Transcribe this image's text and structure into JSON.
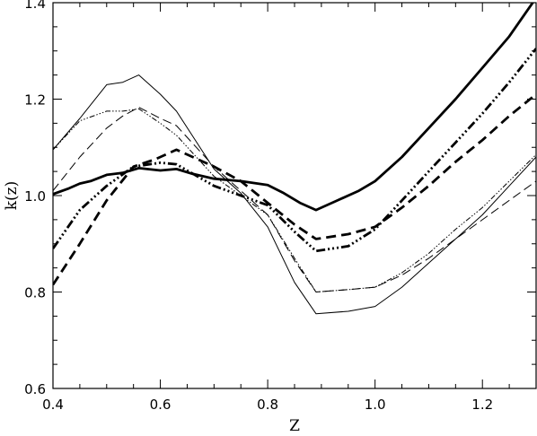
{
  "chart_data": {
    "type": "line",
    "title": "",
    "xlabel": "Z",
    "ylabel": "k(z)",
    "xlim": [
      0.4,
      1.3
    ],
    "ylim": [
      0.6,
      1.4
    ],
    "x_major_ticks": [
      0.4,
      0.6,
      0.8,
      1.0,
      1.2
    ],
    "x_minor_step": 0.05,
    "y_major_ticks": [
      0.6,
      0.8,
      1.0,
      1.2,
      1.4
    ],
    "y_minor_step": 0.05,
    "x_tick_labels": [
      "0.4",
      "0.6",
      "0.8",
      "1.0",
      "1.2"
    ],
    "y_tick_labels": [
      "0.6",
      "0.8",
      "1.0",
      "1.2",
      "1.4"
    ],
    "grid": false,
    "legend": "none",
    "colors": {
      "line": "#000000",
      "axes": "#000000",
      "background": "#ffffff"
    },
    "series": [
      {
        "style": "solid-thick",
        "points": [
          [
            0.4,
            1.003
          ],
          [
            0.43,
            1.015
          ],
          [
            0.45,
            1.025
          ],
          [
            0.47,
            1.03
          ],
          [
            0.5,
            1.043
          ],
          [
            0.53,
            1.047
          ],
          [
            0.56,
            1.057
          ],
          [
            0.6,
            1.052
          ],
          [
            0.63,
            1.055
          ],
          [
            0.66,
            1.045
          ],
          [
            0.7,
            1.035
          ],
          [
            0.75,
            1.03
          ],
          [
            0.8,
            1.022
          ],
          [
            0.83,
            1.005
          ],
          [
            0.86,
            0.985
          ],
          [
            0.89,
            0.97
          ],
          [
            0.93,
            0.99
          ],
          [
            0.97,
            1.01
          ],
          [
            1.0,
            1.03
          ],
          [
            1.05,
            1.08
          ],
          [
            1.1,
            1.14
          ],
          [
            1.15,
            1.2
          ],
          [
            1.2,
            1.265
          ],
          [
            1.25,
            1.33
          ],
          [
            1.3,
            1.41
          ]
        ]
      },
      {
        "style": "dashed-thick",
        "points": [
          [
            0.4,
            0.815
          ],
          [
            0.45,
            0.9
          ],
          [
            0.5,
            0.99
          ],
          [
            0.55,
            1.06
          ],
          [
            0.59,
            1.075
          ],
          [
            0.63,
            1.095
          ],
          [
            0.7,
            1.06
          ],
          [
            0.75,
            1.03
          ],
          [
            0.8,
            0.985
          ],
          [
            0.85,
            0.94
          ],
          [
            0.89,
            0.91
          ],
          [
            0.95,
            0.92
          ],
          [
            1.0,
            0.935
          ],
          [
            1.05,
            0.975
          ],
          [
            1.1,
            1.02
          ],
          [
            1.15,
            1.07
          ],
          [
            1.2,
            1.115
          ],
          [
            1.25,
            1.165
          ],
          [
            1.3,
            1.21
          ]
        ]
      },
      {
        "style": "dash-dot-thick",
        "points": [
          [
            0.4,
            0.89
          ],
          [
            0.45,
            0.97
          ],
          [
            0.5,
            1.02
          ],
          [
            0.55,
            1.06
          ],
          [
            0.6,
            1.068
          ],
          [
            0.63,
            1.065
          ],
          [
            0.7,
            1.02
          ],
          [
            0.75,
            1.0
          ],
          [
            0.8,
            0.98
          ],
          [
            0.85,
            0.925
          ],
          [
            0.89,
            0.885
          ],
          [
            0.95,
            0.895
          ],
          [
            1.0,
            0.93
          ],
          [
            1.05,
            0.99
          ],
          [
            1.1,
            1.05
          ],
          [
            1.15,
            1.11
          ],
          [
            1.2,
            1.17
          ],
          [
            1.25,
            1.235
          ],
          [
            1.3,
            1.305
          ]
        ]
      },
      {
        "style": "solid-thin",
        "points": [
          [
            0.4,
            1.095
          ],
          [
            0.45,
            1.16
          ],
          [
            0.5,
            1.23
          ],
          [
            0.53,
            1.235
          ],
          [
            0.56,
            1.25
          ],
          [
            0.6,
            1.21
          ],
          [
            0.63,
            1.175
          ],
          [
            0.7,
            1.055
          ],
          [
            0.75,
            1.005
          ],
          [
            0.8,
            0.935
          ],
          [
            0.85,
            0.82
          ],
          [
            0.89,
            0.755
          ],
          [
            0.95,
            0.76
          ],
          [
            1.0,
            0.77
          ],
          [
            1.05,
            0.81
          ],
          [
            1.1,
            0.86
          ],
          [
            1.15,
            0.91
          ],
          [
            1.2,
            0.96
          ],
          [
            1.25,
            1.02
          ],
          [
            1.3,
            1.08
          ]
        ]
      },
      {
        "style": "dash-dot-thin",
        "points": [
          [
            0.4,
            1.095
          ],
          [
            0.45,
            1.155
          ],
          [
            0.5,
            1.175
          ],
          [
            0.53,
            1.175
          ],
          [
            0.56,
            1.18
          ],
          [
            0.6,
            1.15
          ],
          [
            0.63,
            1.125
          ],
          [
            0.7,
            1.04
          ],
          [
            0.75,
            1.0
          ],
          [
            0.8,
            0.96
          ],
          [
            0.85,
            0.87
          ],
          [
            0.89,
            0.8
          ],
          [
            0.95,
            0.805
          ],
          [
            1.0,
            0.81
          ],
          [
            1.05,
            0.84
          ],
          [
            1.1,
            0.88
          ],
          [
            1.15,
            0.93
          ],
          [
            1.2,
            0.975
          ],
          [
            1.25,
            1.03
          ],
          [
            1.3,
            1.085
          ]
        ]
      },
      {
        "style": "dashed-thin",
        "points": [
          [
            0.4,
            1.01
          ],
          [
            0.45,
            1.08
          ],
          [
            0.5,
            1.14
          ],
          [
            0.53,
            1.165
          ],
          [
            0.56,
            1.183
          ],
          [
            0.6,
            1.16
          ],
          [
            0.63,
            1.145
          ],
          [
            0.7,
            1.06
          ],
          [
            0.75,
            1.01
          ],
          [
            0.8,
            0.96
          ],
          [
            0.85,
            0.865
          ],
          [
            0.89,
            0.8
          ],
          [
            0.95,
            0.805
          ],
          [
            1.0,
            0.81
          ],
          [
            1.05,
            0.835
          ],
          [
            1.1,
            0.87
          ],
          [
            1.15,
            0.91
          ],
          [
            1.2,
            0.95
          ],
          [
            1.25,
            0.99
          ],
          [
            1.3,
            1.03
          ]
        ]
      }
    ]
  }
}
